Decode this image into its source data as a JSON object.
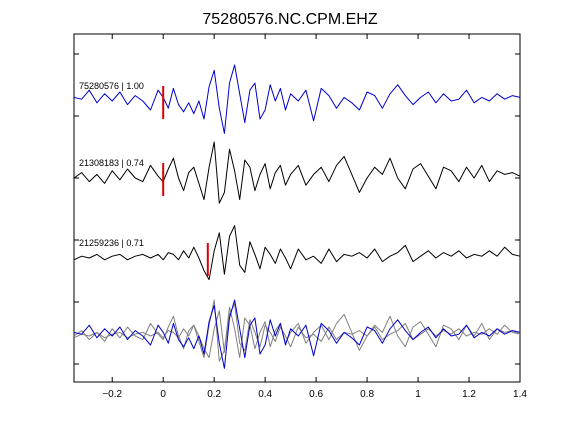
{
  "chart_data": {
    "type": "line",
    "title": "75280576.NC.CPM.EHZ",
    "xlabel": "",
    "ylabel": "",
    "xlim": [
      -0.35,
      1.4
    ],
    "xticks": [
      -0.2,
      0,
      0.2,
      0.4,
      0.6,
      0.8,
      1,
      1.2,
      1.4
    ],
    "xtick_labels": [
      "−0.2",
      "0",
      "0.2",
      "0.4",
      "0.6",
      "0.8",
      "1",
      "1.2",
      "1.4"
    ],
    "grid": false,
    "colors": {
      "reference": "#0000cc",
      "other": "#000000",
      "overlay_other": "#808080",
      "pick": "#dd0000"
    },
    "traces": [
      {
        "label": "75280576 | 1.00",
        "color": "reference",
        "pick_time": 0.0,
        "x": [
          -0.35,
          -0.32,
          -0.29,
          -0.26,
          -0.23,
          -0.2,
          -0.17,
          -0.14,
          -0.11,
          -0.08,
          -0.05,
          -0.02,
          0.0,
          0.02,
          0.04,
          0.06,
          0.08,
          0.1,
          0.12,
          0.14,
          0.16,
          0.18,
          0.2,
          0.22,
          0.24,
          0.26,
          0.28,
          0.3,
          0.32,
          0.34,
          0.36,
          0.38,
          0.4,
          0.42,
          0.44,
          0.46,
          0.48,
          0.5,
          0.53,
          0.56,
          0.59,
          0.62,
          0.65,
          0.68,
          0.71,
          0.74,
          0.77,
          0.8,
          0.83,
          0.86,
          0.89,
          0.92,
          0.95,
          0.98,
          1.01,
          1.04,
          1.07,
          1.1,
          1.13,
          1.16,
          1.19,
          1.22,
          1.25,
          1.28,
          1.31,
          1.34,
          1.37,
          1.4
        ],
        "y": [
          0.1,
          0.05,
          0.3,
          -0.05,
          0.2,
          0.0,
          0.25,
          -0.1,
          0.15,
          0.0,
          -0.25,
          0.3,
          0.1,
          -0.2,
          0.35,
          -0.1,
          -0.3,
          -0.05,
          -0.35,
          0.0,
          -0.5,
          0.4,
          0.85,
          -0.2,
          -0.9,
          0.5,
          1.0,
          0.2,
          -0.6,
          0.3,
          0.5,
          -0.5,
          -0.25,
          0.45,
          0.0,
          0.35,
          -0.25,
          0.2,
          0.0,
          0.3,
          -0.55,
          0.35,
          0.15,
          -0.2,
          0.1,
          -0.05,
          -0.25,
          0.25,
          0.15,
          -0.2,
          0.2,
          0.45,
          0.15,
          -0.1,
          0.1,
          0.25,
          -0.05,
          0.2,
          0.0,
          0.05,
          0.3,
          -0.05,
          0.1,
          0.0,
          0.2,
          0.05,
          0.15,
          0.1
        ]
      },
      {
        "label": "21308183 | 0.74",
        "color": "other",
        "pick_time": 0.0,
        "x": [
          -0.35,
          -0.32,
          -0.29,
          -0.26,
          -0.23,
          -0.2,
          -0.17,
          -0.14,
          -0.11,
          -0.08,
          -0.05,
          -0.02,
          0.0,
          0.02,
          0.04,
          0.06,
          0.08,
          0.1,
          0.12,
          0.14,
          0.16,
          0.18,
          0.2,
          0.22,
          0.24,
          0.26,
          0.28,
          0.3,
          0.32,
          0.34,
          0.36,
          0.38,
          0.4,
          0.42,
          0.44,
          0.46,
          0.48,
          0.5,
          0.53,
          0.56,
          0.59,
          0.62,
          0.65,
          0.68,
          0.71,
          0.74,
          0.77,
          0.8,
          0.83,
          0.86,
          0.89,
          0.92,
          0.95,
          0.98,
          1.01,
          1.04,
          1.07,
          1.1,
          1.13,
          1.16,
          1.19,
          1.22,
          1.25,
          1.28,
          1.31,
          1.34,
          1.37,
          1.4
        ],
        "y": [
          0.0,
          0.15,
          -0.1,
          0.1,
          -0.15,
          0.2,
          -0.05,
          0.25,
          0.0,
          -0.1,
          0.35,
          0.05,
          -0.1,
          0.25,
          0.55,
          0.0,
          -0.35,
          0.15,
          0.3,
          -0.15,
          -0.6,
          0.3,
          1.0,
          -0.7,
          -0.4,
          0.8,
          0.2,
          -0.6,
          0.5,
          0.3,
          -0.35,
          0.1,
          0.4,
          -0.3,
          0.15,
          0.35,
          -0.2,
          0.1,
          0.35,
          -0.2,
          0.1,
          0.3,
          -0.1,
          0.35,
          0.6,
          0.1,
          -0.4,
          0.0,
          0.3,
          0.1,
          0.55,
          0.0,
          -0.3,
          0.25,
          0.4,
          0.05,
          -0.3,
          0.3,
          0.2,
          -0.1,
          0.3,
          0.0,
          0.35,
          -0.1,
          0.2,
          0.1,
          0.15,
          0.05
        ]
      },
      {
        "label": "21259236 | 0.71",
        "color": "other",
        "pick_time": 0.175,
        "x": [
          -0.35,
          -0.32,
          -0.29,
          -0.26,
          -0.23,
          -0.2,
          -0.17,
          -0.14,
          -0.11,
          -0.08,
          -0.05,
          -0.02,
          0.0,
          0.02,
          0.04,
          0.06,
          0.08,
          0.1,
          0.12,
          0.14,
          0.16,
          0.18,
          0.2,
          0.22,
          0.24,
          0.26,
          0.28,
          0.3,
          0.32,
          0.34,
          0.36,
          0.38,
          0.4,
          0.42,
          0.44,
          0.46,
          0.48,
          0.5,
          0.53,
          0.56,
          0.59,
          0.62,
          0.65,
          0.68,
          0.71,
          0.74,
          0.77,
          0.8,
          0.83,
          0.86,
          0.89,
          0.92,
          0.95,
          0.98,
          1.01,
          1.04,
          1.07,
          1.1,
          1.13,
          1.16,
          1.19,
          1.22,
          1.25,
          1.28,
          1.31,
          1.34,
          1.37,
          1.4
        ],
        "y": [
          -0.05,
          0.05,
          0.0,
          0.1,
          -0.05,
          0.05,
          0.1,
          -0.05,
          0.05,
          0.1,
          0.0,
          0.1,
          -0.05,
          0.15,
          0.1,
          -0.05,
          0.2,
          0.0,
          0.3,
          0.0,
          -0.35,
          -0.6,
          0.2,
          0.7,
          -0.45,
          0.6,
          0.9,
          -0.2,
          -0.4,
          0.45,
          0.1,
          -0.3,
          0.3,
          0.1,
          -0.15,
          0.25,
          0.0,
          -0.3,
          0.25,
          -0.05,
          0.05,
          -0.15,
          0.25,
          -0.1,
          0.1,
          0.05,
          0.15,
          0.0,
          0.25,
          -0.1,
          0.05,
          0.15,
          0.35,
          -0.1,
          0.05,
          0.2,
          0.0,
          0.15,
          0.05,
          0.2,
          0.0,
          0.1,
          0.05,
          0.2,
          0.05,
          0.3,
          0.1,
          0.05
        ]
      }
    ]
  }
}
